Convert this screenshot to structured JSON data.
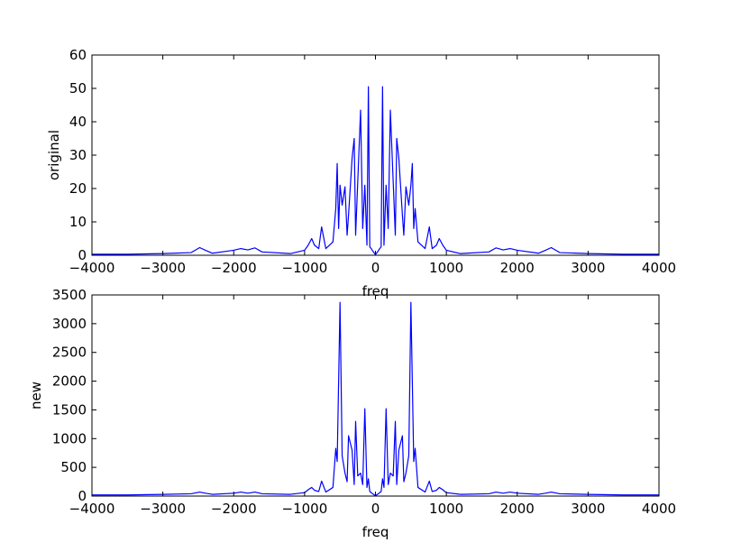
{
  "chart_data": [
    {
      "type": "line",
      "xlabel": "freq",
      "ylabel": "original",
      "xlim": [
        -4000,
        4000
      ],
      "ylim": [
        0,
        60
      ],
      "xticks": [
        "−4000",
        "−3000",
        "−2000",
        "−1000",
        "0",
        "1000",
        "2000",
        "3000",
        "4000"
      ],
      "yticks": [
        "0",
        "10",
        "20",
        "30",
        "40",
        "50",
        "60"
      ],
      "line_color": "#0000ff",
      "series": [
        {
          "x": [
            -4000,
            -3500,
            -3000,
            -2600,
            -2480,
            -2400,
            -2300,
            -2000,
            -1900,
            -1800,
            -1700,
            -1600,
            -1200,
            -1000,
            -950,
            -900,
            -860,
            -800,
            -760,
            -700,
            -600,
            -560,
            -540,
            -520,
            -500,
            -470,
            -430,
            -400,
            -380,
            -330,
            -300,
            -280,
            -250,
            -210,
            -180,
            -150,
            -120,
            -100,
            -80,
            -60,
            -30,
            0,
            30,
            60,
            80,
            100,
            120,
            150,
            180,
            210,
            250,
            280,
            300,
            330,
            380,
            400,
            430,
            470,
            500,
            520,
            540,
            560,
            600,
            700,
            760,
            800,
            860,
            900,
            950,
            1000,
            1200,
            1600,
            1700,
            1800,
            1900,
            2000,
            2300,
            2400,
            2480,
            2600,
            3000,
            3500,
            4000
          ],
          "y": [
            0.3,
            0.3,
            0.5,
            0.8,
            2.3,
            1.5,
            0.6,
            1.5,
            2.0,
            1.6,
            2.2,
            1.0,
            0.5,
            1.5,
            3.0,
            5.0,
            3.0,
            2.0,
            8.5,
            2.0,
            4.0,
            14.0,
            27.5,
            8.0,
            21.0,
            15.0,
            20.5,
            6.0,
            12.0,
            29.0,
            35.0,
            6.0,
            22.0,
            43.5,
            8.0,
            21.0,
            3.0,
            50.5,
            2.5,
            2.0,
            1.0,
            0.2,
            1.0,
            2.0,
            2.5,
            50.5,
            3.0,
            21.0,
            8.0,
            43.5,
            22.0,
            6.0,
            35.0,
            29.0,
            12.0,
            6.0,
            20.5,
            15.0,
            21.0,
            27.5,
            8.0,
            14.0,
            4.0,
            2.0,
            8.5,
            2.0,
            3.0,
            5.0,
            3.0,
            1.5,
            0.5,
            1.0,
            2.2,
            1.6,
            2.0,
            1.5,
            0.6,
            1.5,
            2.3,
            0.8,
            0.5,
            0.3,
            0.3
          ]
        }
      ]
    },
    {
      "type": "line",
      "xlabel": "freq",
      "ylabel": "new",
      "xlim": [
        -4000,
        4000
      ],
      "ylim": [
        0,
        3500
      ],
      "xticks": [
        "−4000",
        "−3000",
        "−2000",
        "−1000",
        "0",
        "1000",
        "2000",
        "3000",
        "4000"
      ],
      "yticks": [
        "0",
        "500",
        "1000",
        "1500",
        "2000",
        "2500",
        "3000",
        "3500"
      ],
      "line_color": "#0000ff",
      "series": [
        {
          "x": [
            -4000,
            -3500,
            -3000,
            -2600,
            -2480,
            -2400,
            -2300,
            -2000,
            -1900,
            -1800,
            -1700,
            -1600,
            -1200,
            -1000,
            -950,
            -900,
            -860,
            -800,
            -760,
            -700,
            -600,
            -560,
            -540,
            -500,
            -470,
            -430,
            -400,
            -380,
            -330,
            -300,
            -280,
            -250,
            -210,
            -180,
            -150,
            -120,
            -100,
            -80,
            -60,
            -30,
            0,
            30,
            60,
            80,
            100,
            120,
            150,
            180,
            210,
            250,
            280,
            300,
            330,
            380,
            400,
            430,
            470,
            500,
            540,
            560,
            600,
            700,
            760,
            800,
            860,
            900,
            950,
            1000,
            1200,
            1600,
            1700,
            1800,
            1900,
            2000,
            2300,
            2400,
            2480,
            2600,
            3000,
            3500,
            4000
          ],
          "y": [
            20,
            20,
            30,
            40,
            70,
            50,
            30,
            50,
            70,
            50,
            70,
            40,
            30,
            60,
            110,
            150,
            100,
            80,
            260,
            70,
            150,
            830,
            600,
            3370,
            700,
            400,
            250,
            1050,
            800,
            200,
            1300,
            350,
            400,
            200,
            1520,
            150,
            300,
            80,
            60,
            30,
            10,
            30,
            60,
            80,
            300,
            150,
            1520,
            200,
            400,
            350,
            1300,
            200,
            800,
            1050,
            250,
            400,
            700,
            3370,
            600,
            830,
            150,
            70,
            260,
            80,
            100,
            150,
            110,
            60,
            30,
            40,
            70,
            50,
            70,
            50,
            30,
            50,
            70,
            40,
            30,
            20,
            20
          ]
        }
      ]
    }
  ]
}
